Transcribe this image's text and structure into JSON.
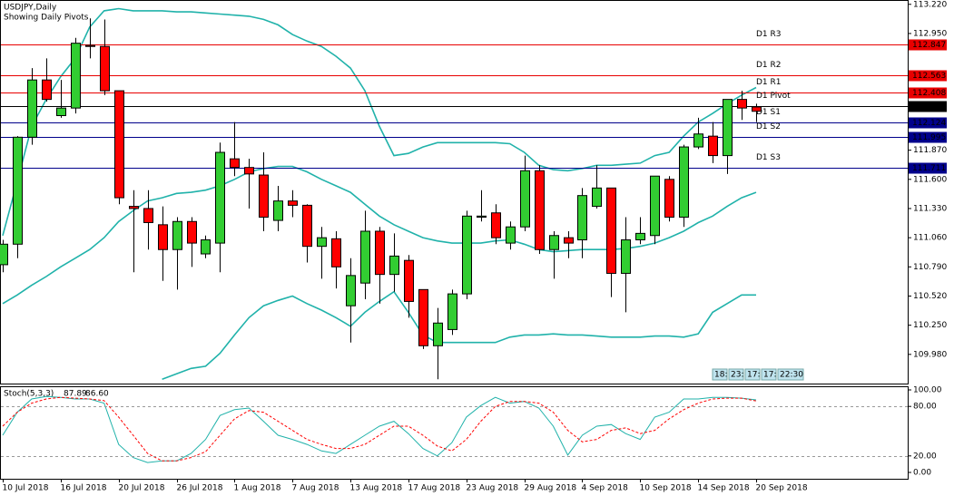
{
  "chart_data": [
    {
      "type": "candlestick",
      "title": "USDJPY,Daily",
      "subtitle": "Showing Daily Pivots",
      "categories": [
        "10 Jul 2018",
        null,
        null,
        null,
        "16 Jul 2018",
        null,
        null,
        null,
        "20 Jul 2018",
        null,
        null,
        null,
        "26 Jul 2018",
        null,
        null,
        null,
        "1 Aug 2018",
        null,
        null,
        null,
        "7 Aug 2018",
        null,
        null,
        null,
        "13 Aug 2018",
        null,
        null,
        null,
        "17 Aug 2018",
        null,
        null,
        null,
        "23 Aug 2018",
        null,
        null,
        null,
        "29 Aug 2018",
        null,
        null,
        null,
        "4 Sep 2018",
        null,
        null,
        null,
        "10 Sep 2018",
        null,
        null,
        null,
        "14 Sep 2018",
        null,
        null,
        null,
        "20 Sep 2018"
      ],
      "open": [
        110.81,
        111.0,
        111.99,
        112.52,
        112.19,
        112.26,
        112.84,
        112.83,
        112.42,
        111.35,
        111.33,
        111.18,
        110.95,
        111.21,
        110.91,
        111.01,
        111.79,
        111.71,
        111.64,
        111.22,
        111.4,
        111.36,
        110.98,
        111.05,
        110.43,
        110.64,
        111.12,
        110.72,
        110.85,
        110.58,
        110.06,
        110.21,
        110.54,
        111.25,
        111.29,
        111.01,
        111.16,
        111.68,
        110.95,
        111.06,
        111.04,
        111.35,
        111.52,
        110.73,
        111.04,
        111.08,
        111.6,
        111.25,
        111.9,
        112.0,
        111.82,
        112.34,
        112.27
      ],
      "high": [
        111.04,
        112.0,
        112.63,
        112.72,
        112.52,
        112.91,
        113.09,
        113.08,
        112.42,
        111.5,
        111.5,
        111.35,
        111.25,
        111.25,
        111.08,
        111.94,
        112.13,
        111.79,
        111.85,
        111.54,
        111.5,
        111.37,
        111.16,
        111.12,
        110.87,
        111.31,
        111.16,
        111.1,
        110.9,
        110.58,
        110.41,
        110.58,
        111.31,
        111.5,
        111.37,
        111.21,
        111.82,
        111.73,
        111.12,
        111.12,
        111.52,
        111.73,
        111.52,
        111.25,
        111.25,
        111.63,
        111.63,
        111.92,
        112.17,
        112.13,
        112.34,
        112.42,
        112.3
      ],
      "low": [
        110.74,
        110.87,
        111.92,
        112.32,
        112.17,
        112.21,
        112.72,
        112.38,
        111.37,
        110.74,
        110.95,
        110.66,
        110.58,
        110.79,
        110.87,
        110.74,
        111.63,
        111.33,
        111.12,
        111.12,
        111.25,
        110.83,
        110.68,
        110.59,
        110.09,
        110.49,
        110.45,
        110.56,
        110.32,
        110.03,
        109.75,
        110.16,
        110.49,
        111.21,
        111.0,
        110.95,
        111.12,
        110.91,
        110.68,
        110.87,
        110.87,
        111.33,
        110.51,
        110.37,
        111.0,
        111.0,
        111.21,
        111.16,
        111.88,
        111.75,
        111.65,
        112.15,
        112.13
      ],
      "close": [
        111.0,
        111.99,
        112.52,
        112.34,
        112.26,
        112.86,
        112.83,
        112.42,
        111.43,
        111.33,
        111.2,
        110.95,
        111.21,
        111.01,
        111.04,
        111.85,
        111.71,
        111.65,
        111.25,
        111.4,
        111.36,
        110.98,
        111.06,
        110.79,
        110.71,
        111.12,
        110.72,
        110.89,
        110.47,
        110.06,
        110.27,
        110.54,
        111.26,
        111.26,
        111.06,
        111.16,
        111.68,
        110.95,
        111.08,
        111.01,
        111.45,
        111.52,
        110.73,
        111.04,
        111.1,
        111.63,
        111.25,
        111.9,
        112.02,
        111.82,
        112.34,
        112.26,
        112.23
      ],
      "up_color": "#32cd32",
      "down_color": "#ff0000",
      "bands": [
        {
          "color": "#20b2aa",
          "values": [
            111.08,
            111.58,
            112.09,
            112.34,
            112.55,
            112.72,
            113.01,
            113.16,
            113.18,
            113.16,
            113.16,
            113.16,
            113.15,
            113.15,
            113.14,
            113.13,
            113.12,
            113.11,
            113.08,
            113.03,
            112.94,
            112.88,
            112.83,
            112.74,
            112.63,
            112.42,
            112.09,
            111.82,
            111.84,
            111.9,
            111.94,
            111.94,
            111.94,
            111.94,
            111.94,
            111.93,
            111.85,
            111.73,
            111.69,
            111.68,
            111.7,
            111.73,
            111.73,
            111.74,
            111.75,
            111.82,
            111.85,
            112.0,
            112.13,
            112.21,
            112.3,
            112.38,
            112.45
          ]
        },
        {
          "color": "#20b2aa",
          "values": [
            110.45,
            110.53,
            110.62,
            110.7,
            110.79,
            110.87,
            110.95,
            111.06,
            111.21,
            111.31,
            111.4,
            111.43,
            111.47,
            111.48,
            111.5,
            111.54,
            111.6,
            111.67,
            111.7,
            111.72,
            111.72,
            111.67,
            111.6,
            111.54,
            111.48,
            111.37,
            111.26,
            111.18,
            111.12,
            111.06,
            111.03,
            111.01,
            111.01,
            111.01,
            111.03,
            111.04,
            111.0,
            110.95,
            110.93,
            110.94,
            110.95,
            110.95,
            110.95,
            110.96,
            110.98,
            111.01,
            111.06,
            111.12,
            111.2,
            111.26,
            111.35,
            111.43,
            111.48
          ]
        },
        {
          "color": "#20b2aa",
          "values": [
            null,
            null,
            null,
            null,
            null,
            null,
            null,
            null,
            null,
            null,
            null,
            109.75,
            109.8,
            109.85,
            109.87,
            109.99,
            110.16,
            110.32,
            110.43,
            110.48,
            110.52,
            110.45,
            110.39,
            110.32,
            110.24,
            110.37,
            110.47,
            110.56,
            110.37,
            110.16,
            110.09,
            110.09,
            110.09,
            110.09,
            110.09,
            110.14,
            110.16,
            110.16,
            110.17,
            110.16,
            110.16,
            110.15,
            110.14,
            110.14,
            110.14,
            110.15,
            110.15,
            110.14,
            110.17,
            110.37,
            110.45,
            110.53,
            110.53
          ]
        }
      ],
      "pivots": [
        {
          "name": "D1 R3",
          "value": 112.847,
          "color": "#e80000"
        },
        {
          "name": "D1 R2",
          "value": 112.563,
          "color": "#e80000"
        },
        {
          "name": "D1 R1",
          "value": 112.408,
          "color": "#e80000"
        },
        {
          "name": "D1 Pivot",
          "value": 112.279,
          "color": "#000000"
        },
        {
          "name": "D1 S1",
          "value": 112.124,
          "color": "#00008b"
        },
        {
          "name": "D1 S2",
          "value": 111.995,
          "color": "#00008b"
        },
        {
          "name": "D1 S3",
          "value": 111.711,
          "color": "#00008b"
        }
      ],
      "ylim": [
        109.71,
        113.26
      ],
      "yticks": [
        {
          "value": 113.22,
          "label": "113.220"
        },
        {
          "value": 112.95,
          "label": "112.950"
        },
        {
          "value": 111.87,
          "label": "111.870"
        },
        {
          "value": 111.6,
          "label": "111.600"
        },
        {
          "value": 111.33,
          "label": "111.330"
        },
        {
          "value": 111.06,
          "label": "111.060"
        },
        {
          "value": 110.79,
          "label": "110.790"
        },
        {
          "value": 110.52,
          "label": "110.520"
        },
        {
          "value": 110.25,
          "label": "110.250"
        },
        {
          "value": 109.98,
          "label": "109.980"
        }
      ],
      "time_labels": [
        "18:",
        "23:",
        "17:",
        "17:",
        "22:30"
      ]
    },
    {
      "type": "line",
      "title": "Stoch(5,3,3)",
      "series": [
        {
          "color": "#20b2aa",
          "dashed": false,
          "last_label": "87.89",
          "values": [
            45,
            73,
            89,
            92,
            91,
            89,
            89,
            84,
            34,
            18,
            12,
            14,
            14,
            23,
            40,
            69,
            76,
            78,
            62,
            45,
            40,
            34,
            26,
            23,
            34,
            45,
            56,
            62,
            47,
            29,
            20,
            36,
            67,
            81,
            91,
            84,
            86,
            78,
            56,
            21,
            45,
            56,
            58,
            47,
            40,
            67,
            73,
            89,
            89,
            91,
            91,
            90,
            87.89
          ]
        },
        {
          "color": "#ff0000",
          "dashed": true,
          "last_label": "86.60",
          "values": [
            56,
            73,
            84,
            89,
            91,
            90,
            89,
            87,
            67,
            45,
            23,
            14,
            14,
            18,
            25,
            45,
            65,
            75,
            73,
            62,
            51,
            40,
            34,
            29,
            29,
            34,
            45,
            56,
            56,
            45,
            32,
            26,
            40,
            62,
            80,
            86,
            86,
            84,
            73,
            51,
            37,
            40,
            51,
            54,
            47,
            51,
            65,
            76,
            84,
            89,
            90,
            90,
            86.6
          ]
        }
      ],
      "ylim": [
        -7.7,
        104.4
      ],
      "yticks": [
        {
          "value": 100,
          "label": "100.00"
        },
        {
          "value": 80,
          "label": "80.00"
        },
        {
          "value": 20,
          "label": "20.00"
        },
        {
          "value": 0,
          "label": "0.00"
        }
      ],
      "levels": [
        80,
        20
      ]
    }
  ]
}
